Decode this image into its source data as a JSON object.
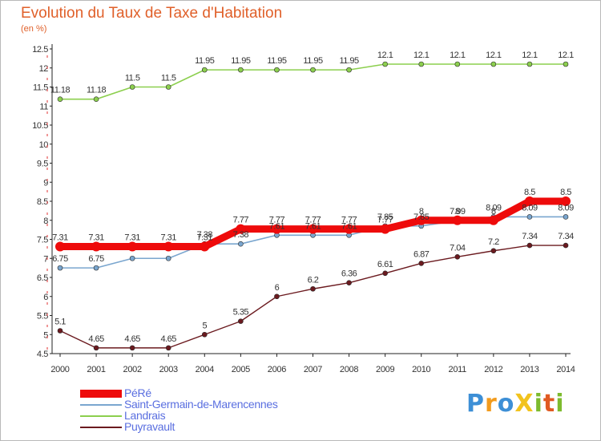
{
  "title": "Evolution du Taux de Taxe d'Habitation",
  "subtitle": "(en %)",
  "brand": {
    "text": "ProXiti",
    "letters": [
      {
        "ch": "P",
        "color": "#3d8fd6"
      },
      {
        "ch": "r",
        "color": "#f29b1d"
      },
      {
        "ch": "o",
        "color": "#3d8fd6"
      },
      {
        "ch": "X",
        "color": "#f2c31d"
      },
      {
        "ch": "i",
        "color": "#7dbb2e"
      },
      {
        "ch": "t",
        "color": "#e05a22"
      },
      {
        "ch": "i",
        "color": "#7dbb2e"
      }
    ]
  },
  "chart_data": {
    "type": "line",
    "x": [
      "2000",
      "2001",
      "2002",
      "2003",
      "2004",
      "2005",
      "2006",
      "2007",
      "2008",
      "2009",
      "2010",
      "2011",
      "2012",
      "2013",
      "2014"
    ],
    "ylim": [
      4.5,
      12.5
    ],
    "yticks": [
      "4.5",
      "5",
      "5.5",
      "6",
      "6.5",
      "7",
      "7.5",
      "8",
      "8.5",
      "9",
      "9.5",
      "10",
      "10.5",
      "11",
      "11.5",
      "12",
      "12.5"
    ],
    "grid": false,
    "legend_position": "bottom-left",
    "series": [
      {
        "name": "Landrais",
        "color": "#8ccf4e",
        "width": 1.6,
        "marker": 3,
        "values": [
          11.18,
          11.18,
          11.5,
          11.5,
          11.95,
          11.95,
          11.95,
          11.95,
          11.95,
          12.1,
          12.1,
          12.1,
          12.1,
          12.1,
          12.1
        ],
        "labels": [
          "11.18",
          "11.18",
          "11.5",
          "11.5",
          "11.95",
          "11.95",
          "11.95",
          "11.95",
          "11.95",
          "12.1",
          "12.1",
          "12.1",
          "12.1",
          "12.1",
          "12.1"
        ]
      },
      {
        "name": "Saint-Germain-de-Marencennes",
        "color": "#7aa6cf",
        "width": 1.6,
        "marker": 3,
        "values": [
          6.75,
          6.75,
          7.0,
          7.0,
          7.38,
          7.38,
          7.61,
          7.61,
          7.61,
          7.85,
          7.85,
          7.99,
          8.09,
          8.09,
          8.09
        ],
        "labels": [
          "6.75",
          "6.75",
          "",
          "",
          "7.38",
          "7.38",
          "7.61",
          "7.61",
          "7.61",
          "7.85",
          "7.85",
          "7.99",
          "8.09",
          "8.09",
          "8.09"
        ]
      },
      {
        "name": "Puyravault",
        "color": "#6b1a1f",
        "width": 1.4,
        "marker": 3,
        "values": [
          5.1,
          4.65,
          4.65,
          4.65,
          5.0,
          5.35,
          6.0,
          6.2,
          6.36,
          6.61,
          6.87,
          7.04,
          7.2,
          7.34,
          7.34
        ],
        "labels": [
          "5.1",
          "4.65",
          "4.65",
          "4.65",
          "5",
          "5.35",
          "6",
          "6.2",
          "6.36",
          "6.61",
          "6.87",
          "7.04",
          "7.2",
          "7.34",
          "7.34"
        ]
      },
      {
        "name": "PéRé",
        "color": "#ee0b0b",
        "width": 9,
        "marker": 6,
        "values": [
          7.31,
          7.31,
          7.31,
          7.31,
          7.31,
          7.77,
          7.77,
          7.77,
          7.77,
          7.77,
          8.0,
          8.0,
          8.0,
          8.5,
          8.5
        ],
        "labels": [
          "7.31",
          "7.31",
          "7.31",
          "7.31",
          "7.31",
          "7.77",
          "7.77",
          "7.77",
          "7.77",
          "7.77",
          "8",
          "8",
          "8",
          "8.5",
          "8.5"
        ]
      }
    ],
    "legend_order": [
      "PéRé",
      "Saint-Germain-de-Marencennes",
      "Landrais",
      "Puyravault"
    ]
  }
}
